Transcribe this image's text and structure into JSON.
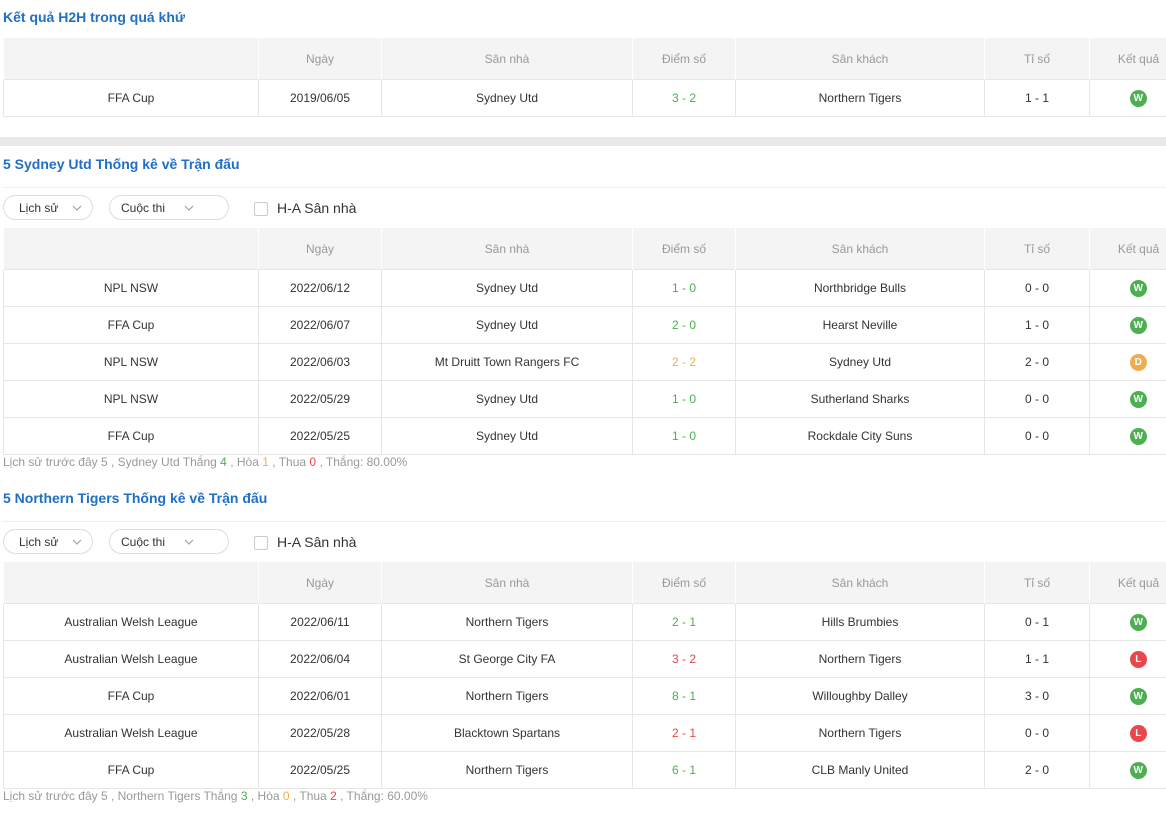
{
  "h2h": {
    "title": "Kết quả H2H trong quá khứ",
    "headers": [
      "Ngày",
      "Sân nhà",
      "Điểm số",
      "Sân khách",
      "Tỉ số",
      "Kết quả"
    ],
    "rows": [
      [
        "FFA Cup",
        "2019/06/05",
        "Sydney Utd",
        "3 - 2",
        "Northern Tigers",
        "1 - 1",
        "W"
      ]
    ]
  },
  "sections": [
    {
      "title": "5 Sydney Utd Thống kê về Trận đấu",
      "filters": {
        "history": "Lịch sử",
        "competition": "Cuộc thi",
        "home_away": "H-A Sân nhà"
      },
      "headers": [
        "Ngày",
        "Sân nhà",
        "Điểm số",
        "Sân khách",
        "Tỉ số",
        "Kết quả"
      ],
      "rows": [
        [
          "NPL NSW",
          "2022/06/12",
          "Sydney Utd",
          "1 - 0",
          "Northbridge Bulls",
          "0 - 0",
          "W"
        ],
        [
          "FFA Cup",
          "2022/06/07",
          "Sydney Utd",
          "2 - 0",
          "Hearst Neville",
          "1 - 0",
          "W"
        ],
        [
          "NPL NSW",
          "2022/06/03",
          "Mt Druitt Town Rangers FC",
          "2 - 2",
          "Sydney Utd",
          "2 - 0",
          "D"
        ],
        [
          "NPL NSW",
          "2022/05/29",
          "Sydney Utd",
          "1 - 0",
          "Sutherland Sharks",
          "0 - 0",
          "W"
        ],
        [
          "FFA Cup",
          "2022/05/25",
          "Sydney Utd",
          "1 - 0",
          "Rockdale City Suns",
          "0 - 0",
          "W"
        ]
      ],
      "summary": {
        "lead": "Lịch sử trước đây 5 , Sydney Utd Thắng",
        "wins": "4",
        "draws_label": ", Hòa",
        "draws": "1",
        "losses_label": ", Thua",
        "losses": "0",
        "rate": ", Thắng: 80.00%"
      }
    },
    {
      "title": "5 Northern Tigers Thống kê về Trận đấu",
      "filters": {
        "history": "Lịch sử",
        "competition": "Cuộc thi",
        "home_away": "H-A Sân nhà"
      },
      "headers": [
        "Ngày",
        "Sân nhà",
        "Điểm số",
        "Sân khách",
        "Tỉ số",
        "Kết quả"
      ],
      "rows": [
        [
          "Australian Welsh League",
          "2022/06/11",
          "Northern Tigers",
          "2 - 1",
          "Hills Brumbies",
          "0 - 1",
          "W"
        ],
        [
          "Australian Welsh League",
          "2022/06/04",
          "St George City FA",
          "3 - 2",
          "Northern Tigers",
          "1 - 1",
          "L"
        ],
        [
          "FFA Cup",
          "2022/06/01",
          "Northern Tigers",
          "8 - 1",
          "Willoughby Dalley",
          "3 - 0",
          "W"
        ],
        [
          "Australian Welsh League",
          "2022/05/28",
          "Blacktown Spartans",
          "2 - 1",
          "Northern Tigers",
          "0 - 0",
          "L"
        ],
        [
          "FFA Cup",
          "2022/05/25",
          "Northern Tigers",
          "6 - 1",
          "CLB Manly United",
          "2 - 0",
          "W"
        ]
      ],
      "summary": {
        "lead": "Lịch sử trước đây 5 , Northern Tigers Thắng",
        "wins": "3",
        "draws_label": ", Hòa",
        "draws": "0",
        "losses_label": ", Thua",
        "losses": "2",
        "rate": ", Thắng: 60.00%"
      }
    }
  ]
}
